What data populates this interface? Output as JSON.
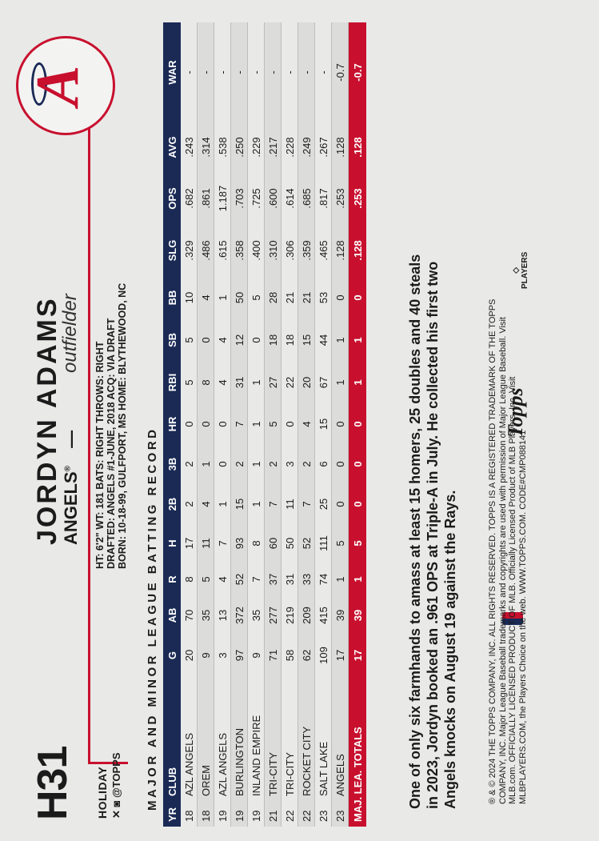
{
  "card": {
    "number": "H31",
    "set_name": "HOLIDAY",
    "social": "@TOPPS",
    "player_name": "JORDYN ADAMS",
    "team": "ANGELS",
    "trademark": "®",
    "dash": "—",
    "position": "outfielder",
    "bio": {
      "line1": "HT: 6'2\"   WT: 181   BATS: RIGHT   THROWS: RIGHT",
      "line2": "DRAFTED: ANGELS #1-JUNE, 2018     ACQ: VIA DRAFT",
      "line3": "BORN: 10-18-99, GULFPORT, MS     HOME: BLYTHEWOOD, NC"
    },
    "record_title": "MAJOR AND MINOR LEAGUE BATTING RECORD",
    "logo_letter": "A",
    "colors": {
      "red": "#c8102e",
      "navy": "#1a2a55"
    }
  },
  "stats": {
    "headers": [
      "YR",
      "CLUB",
      "G",
      "AB",
      "R",
      "H",
      "2B",
      "3B",
      "HR",
      "RBI",
      "SB",
      "BB",
      "SLG",
      "OPS",
      "AVG",
      "WAR"
    ],
    "rows": [
      [
        "18",
        "AZL ANGELS",
        "20",
        "70",
        "8",
        "17",
        "2",
        "2",
        "0",
        "5",
        "5",
        "10",
        ".329",
        ".682",
        ".243",
        "-"
      ],
      [
        "18",
        "OREM",
        "9",
        "35",
        "5",
        "11",
        "4",
        "1",
        "0",
        "8",
        "0",
        "4",
        ".486",
        ".861",
        ".314",
        "-"
      ],
      [
        "19",
        "AZL ANGELS",
        "3",
        "13",
        "4",
        "7",
        "1",
        "0",
        "0",
        "4",
        "4",
        "1",
        ".615",
        "1.187",
        ".538",
        "-"
      ],
      [
        "19",
        "BURLINGTON",
        "97",
        "372",
        "52",
        "93",
        "15",
        "2",
        "7",
        "31",
        "12",
        "50",
        ".358",
        ".703",
        ".250",
        "-"
      ],
      [
        "19",
        "INLAND EMPIRE",
        "9",
        "35",
        "7",
        "8",
        "1",
        "1",
        "1",
        "1",
        "0",
        "5",
        ".400",
        ".725",
        ".229",
        "-"
      ],
      [
        "21",
        "TRI-CITY",
        "71",
        "277",
        "37",
        "60",
        "7",
        "2",
        "5",
        "27",
        "18",
        "28",
        ".310",
        ".600",
        ".217",
        "-"
      ],
      [
        "22",
        "TRI-CITY",
        "58",
        "219",
        "31",
        "50",
        "11",
        "3",
        "0",
        "22",
        "18",
        "21",
        ".306",
        ".614",
        ".228",
        "-"
      ],
      [
        "22",
        "ROCKET CITY",
        "62",
        "209",
        "33",
        "52",
        "7",
        "2",
        "4",
        "20",
        "15",
        "21",
        ".359",
        ".685",
        ".249",
        "-"
      ],
      [
        "23",
        "SALT LAKE",
        "109",
        "415",
        "74",
        "111",
        "25",
        "6",
        "15",
        "67",
        "44",
        "53",
        ".465",
        ".817",
        ".267",
        "-"
      ],
      [
        "23",
        "ANGELS",
        "17",
        "39",
        "1",
        "5",
        "0",
        "0",
        "0",
        "1",
        "1",
        "0",
        ".128",
        ".253",
        ".128",
        "-0.7"
      ]
    ],
    "totals": [
      "MAJ. LEA. TOTALS",
      "17",
      "39",
      "1",
      "5",
      "0",
      "0",
      "0",
      "1",
      "1",
      "0",
      ".128",
      ".253",
      ".128",
      "-0.7"
    ]
  },
  "blurb": "One of only six farmhands to amass at least 15 homers, 25 doubles and 40 steals in 2023, Jordyn booked an .961 OPS at Triple-A in July. He collected his first two Angels knocks on August 19 against the Rays.",
  "legal": "® & © 2024 THE TOPPS COMPANY, INC. ALL RIGHTS RESERVED. TOPPS IS A REGISTERED TRADEMARK OF THE TOPPS COMPANY, INC. Major League Baseball trademarks and copyrights are used with permission of Major League Baseball. Visit MLB.com. OFFICIALLY LICENSED PRODUCT OF MLB. Officially Licensed Product of MLB Players, Inc. Visit MLBPLAYERS.COM, the Players Choice on the web. WWW.TOPPS.COM. CODE#CMP088141",
  "logos": {
    "topps": "Topps",
    "players": "PLAYERS"
  }
}
